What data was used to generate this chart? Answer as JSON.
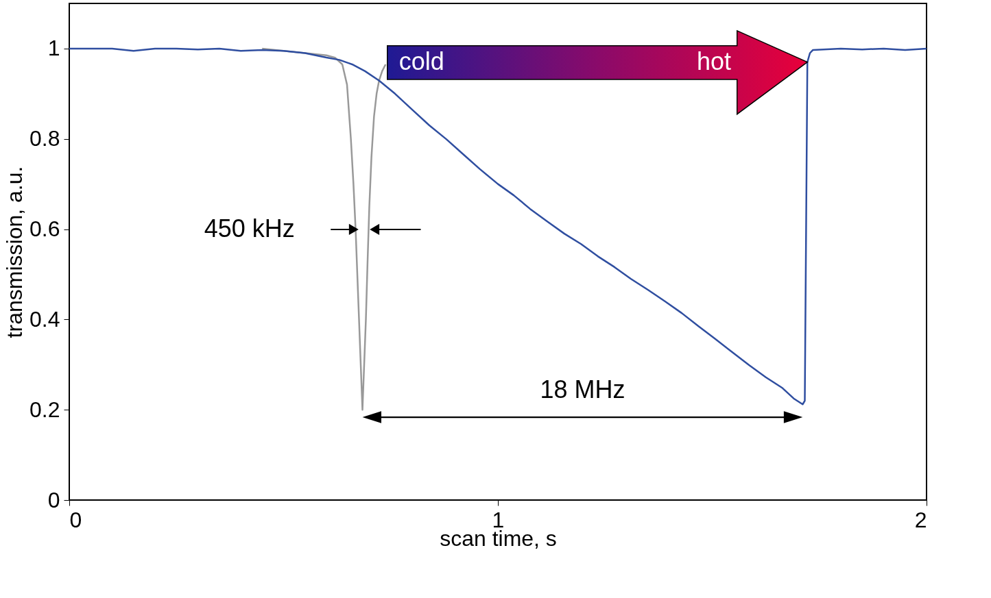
{
  "chart_data": {
    "type": "line",
    "xlabel": "scan time, s",
    "ylabel": "transmission, a.u.",
    "xlim": [
      0,
      2
    ],
    "ylim": [
      0,
      1.1
    ],
    "xticks": [
      0,
      1,
      2
    ],
    "yticks": [
      0,
      0.2,
      0.4,
      0.6,
      0.8,
      1
    ],
    "grid": false,
    "marker": "none",
    "line_style": "solid",
    "series": [
      {
        "color": "#999999",
        "x": [
          0.45,
          0.55,
          0.6,
          0.62,
          0.637,
          0.648,
          0.657,
          0.663,
          0.668,
          0.672,
          0.676,
          0.68,
          0.684,
          0.688,
          0.692,
          0.696,
          0.7,
          0.705,
          0.711,
          0.717,
          0.723,
          0.73,
          0.738
        ],
        "values": [
          1.0,
          0.99,
          0.985,
          0.98,
          0.965,
          0.92,
          0.8,
          0.7,
          0.6,
          0.5,
          0.4,
          0.3,
          0.2,
          0.3,
          0.4,
          0.53,
          0.65,
          0.76,
          0.85,
          0.9,
          0.93,
          0.95,
          0.965
        ]
      },
      {
        "color": "#2f4ea0",
        "x": [
          0,
          0.05,
          0.1,
          0.15,
          0.2,
          0.25,
          0.3,
          0.35,
          0.4,
          0.45,
          0.5,
          0.55,
          0.6,
          0.63,
          0.66,
          0.69,
          0.723,
          0.76,
          0.801,
          0.84,
          0.88,
          0.92,
          0.958,
          1.0,
          1.037,
          1.075,
          1.115,
          1.155,
          1.194,
          1.233,
          1.272,
          1.31,
          1.351,
          1.39,
          1.429,
          1.468,
          1.507,
          1.546,
          1.586,
          1.625,
          1.664,
          1.69,
          1.711,
          1.716,
          1.722,
          1.728,
          1.735,
          1.8,
          1.85,
          1.9,
          1.95,
          2.0
        ],
        "values": [
          1.0,
          1.0,
          1.0,
          0.995,
          1.0,
          1.0,
          0.998,
          1.0,
          0.995,
          0.997,
          0.995,
          0.99,
          0.98,
          0.975,
          0.965,
          0.95,
          0.929,
          0.9,
          0.864,
          0.83,
          0.799,
          0.765,
          0.733,
          0.7,
          0.675,
          0.645,
          0.617,
          0.59,
          0.567,
          0.54,
          0.516,
          0.49,
          0.465,
          0.44,
          0.414,
          0.385,
          0.357,
          0.328,
          0.299,
          0.272,
          0.248,
          0.225,
          0.212,
          0.22,
          0.97,
          0.99,
          0.997,
          1.0,
          0.998,
          1.0,
          0.997,
          1.0
        ]
      }
    ],
    "annotations": [
      "450 kHz",
      "18 MHz",
      "cold",
      "hot"
    ]
  }
}
